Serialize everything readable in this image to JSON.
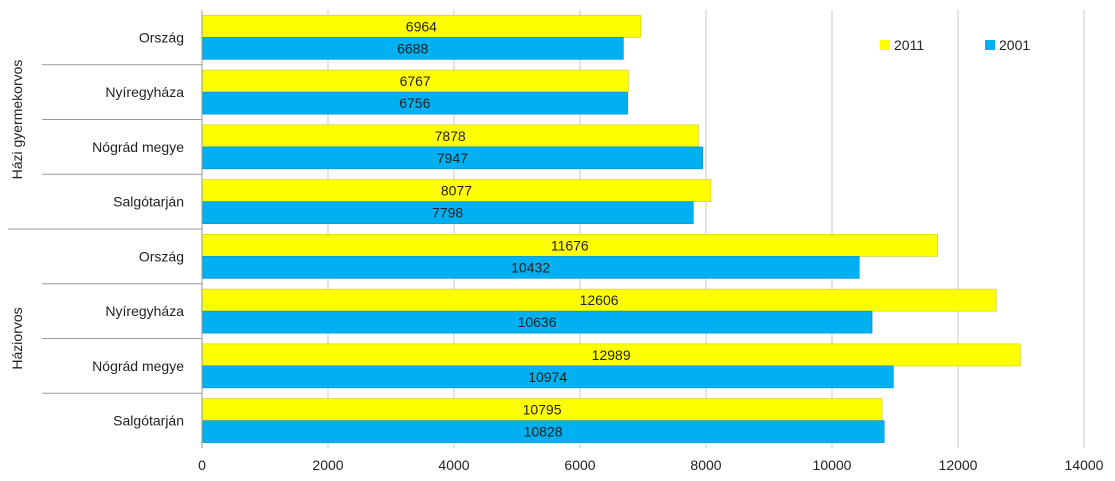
{
  "chart_data": {
    "type": "bar",
    "orientation": "horizontal",
    "groups": [
      {
        "label": "Házi gyermekorvos",
        "categories": [
          "Ország",
          "Nyíregyháza",
          "Nógrád megye",
          "Salgótarján"
        ]
      },
      {
        "label": "Háziorvos",
        "categories": [
          "Ország",
          "Nyíregyháza",
          "Nógrád megye",
          "Salgótarján"
        ]
      }
    ],
    "series": [
      {
        "name": "2011",
        "color": "#ffff00",
        "values": [
          6964,
          6767,
          7878,
          8077,
          11676,
          12606,
          12989,
          10795
        ]
      },
      {
        "name": "2001",
        "color": "#00b0f0",
        "values": [
          6688,
          6756,
          7947,
          7798,
          10432,
          10636,
          10974,
          10828
        ]
      }
    ],
    "xlim": [
      0,
      14000
    ],
    "xticks": [
      0,
      2000,
      4000,
      6000,
      8000,
      10000,
      12000,
      14000
    ],
    "grid": "vertical",
    "legend_position": "top-right"
  }
}
